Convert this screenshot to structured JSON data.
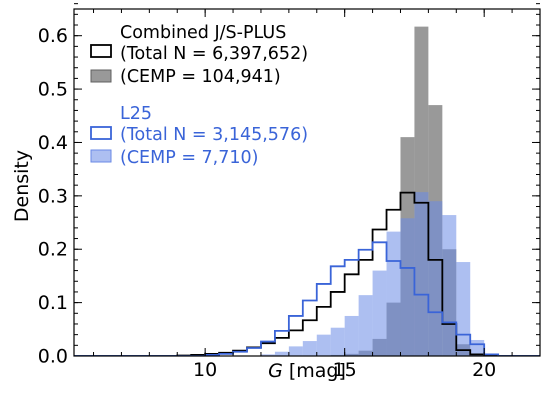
{
  "chart_data": {
    "type": "histogram",
    "xlabel_symbol": "G",
    "xlabel_unit": "[mag]",
    "ylabel": "Density",
    "xlim": [
      5.3,
      22.0
    ],
    "ylim": [
      0.0,
      0.65
    ],
    "x_ticks": [
      10,
      15,
      20
    ],
    "y_ticks": [
      0.0,
      0.1,
      0.2,
      0.3,
      0.4,
      0.5,
      0.6
    ],
    "y_tick_labels": [
      "0.0",
      "0.1",
      "0.2",
      "0.3",
      "0.4",
      "0.5",
      "0.6"
    ],
    "minor_x_step": 1,
    "minor_y_step": 0.02,
    "grid": false,
    "legend_placement": "top-left",
    "bin_edges": [
      5.0,
      5.5,
      6.0,
      6.5,
      7.0,
      7.5,
      8.0,
      8.5,
      9.0,
      9.5,
      10.0,
      10.5,
      11.0,
      11.5,
      12.0,
      12.5,
      13.0,
      13.5,
      14.0,
      14.5,
      15.0,
      15.5,
      16.0,
      16.5,
      17.0,
      17.5,
      18.0,
      18.5,
      19.0,
      19.5,
      20.0,
      20.5,
      21.0,
      21.5,
      22.0
    ],
    "series": [
      {
        "key": "combined_total",
        "style": "step",
        "color": "#000000",
        "values": [
          0,
          0,
          0,
          0,
          0,
          0,
          0,
          0,
          0.001,
          0.002,
          0.004,
          0.006,
          0.01,
          0.016,
          0.024,
          0.034,
          0.048,
          0.067,
          0.092,
          0.12,
          0.153,
          0.18,
          0.237,
          0.274,
          0.306,
          0.287,
          0.18,
          0.06,
          0.011,
          0.003,
          0.001,
          0,
          0,
          0
        ]
      },
      {
        "key": "combined_cemp",
        "style": "bar",
        "color": "#808080",
        "opacity": 0.8,
        "values": [
          0,
          0,
          0,
          0,
          0,
          0,
          0,
          0,
          0,
          0,
          0,
          0,
          0,
          0,
          0,
          0,
          0,
          0,
          0.001,
          0.002,
          0.004,
          0.01,
          0.032,
          0.1,
          0.41,
          0.617,
          0.47,
          0.2,
          0.022,
          0.002,
          0,
          0,
          0,
          0
        ]
      },
      {
        "key": "l25_total",
        "style": "step",
        "color": "#3a64d8",
        "values": [
          0,
          0,
          0,
          0,
          0,
          0,
          0,
          0,
          0,
          0,
          0.002,
          0.004,
          0.008,
          0.015,
          0.027,
          0.047,
          0.075,
          0.104,
          0.135,
          0.168,
          0.18,
          0.199,
          0.213,
          0.178,
          0.165,
          0.115,
          0.082,
          0.063,
          0.04,
          0.022,
          0.003,
          0,
          0,
          0
        ]
      },
      {
        "key": "l25_cemp",
        "style": "bar",
        "color": "#6a8ae6",
        "opacity": 0.55,
        "values": [
          0,
          0,
          0,
          0,
          0,
          0,
          0,
          0,
          0,
          0,
          0,
          0,
          0,
          0,
          0.003,
          0.008,
          0.018,
          0.028,
          0.04,
          0.053,
          0.075,
          0.114,
          0.16,
          0.233,
          0.258,
          0.307,
          0.29,
          0.264,
          0.176,
          0.03,
          0,
          0,
          0,
          0
        ]
      }
    ],
    "legend": {
      "combined": {
        "color": "#000000",
        "title": "Combined J/S-PLUS",
        "total": "(Total N = 6,397,652)",
        "cemp": "(CEMP = 104,941)"
      },
      "l25": {
        "color": "#3a64d8",
        "title": "L25",
        "total": "(Total N = 3,145,576)",
        "cemp": "(CEMP = 7,710)"
      }
    }
  }
}
